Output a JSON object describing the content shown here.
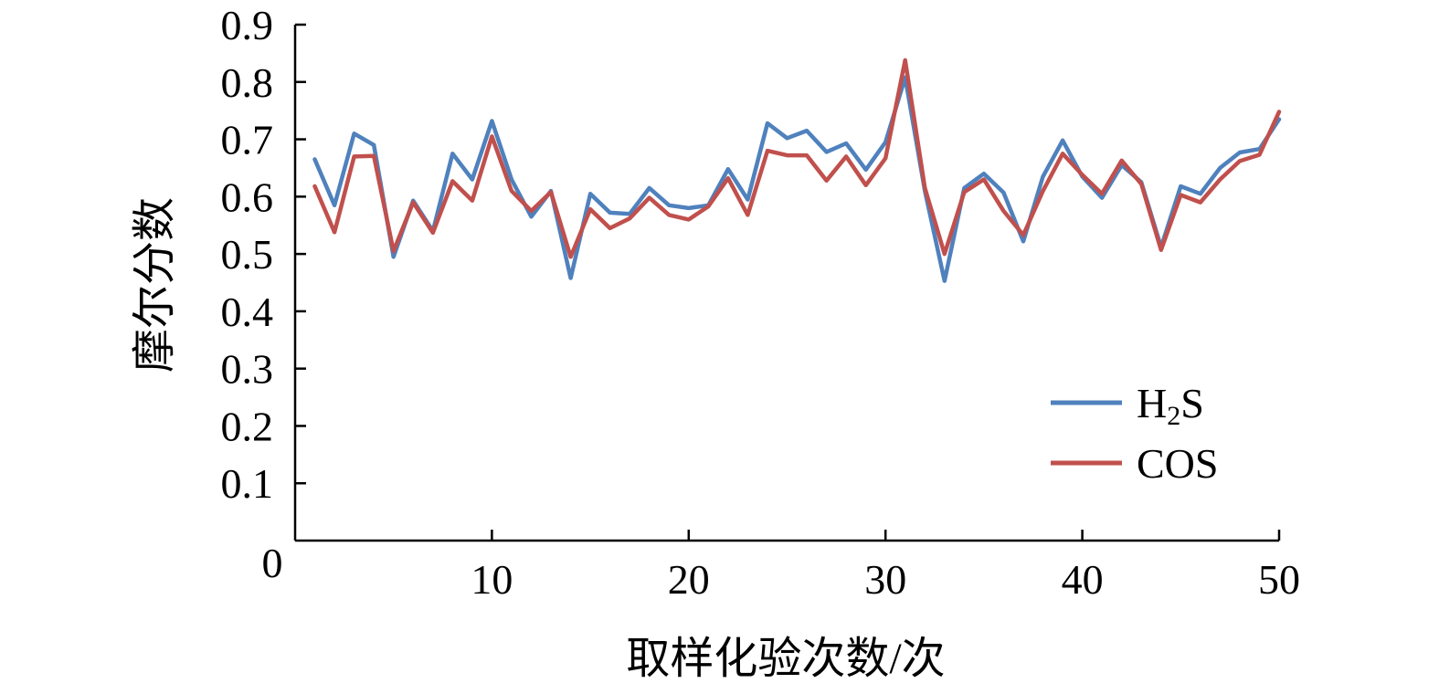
{
  "chart_data": {
    "type": "line",
    "title": "",
    "xlabel": "取样化验次数/次",
    "ylabel": "摩尔分数",
    "xlim": [
      0,
      50
    ],
    "ylim": [
      0,
      0.9
    ],
    "x_ticks": [
      "10",
      "20",
      "30",
      "40",
      "50"
    ],
    "y_ticks": [
      "0.1",
      "0.2",
      "0.3",
      "0.4",
      "0.5",
      "0.6",
      "0.7",
      "0.8",
      "0.9"
    ],
    "origin_label": "0",
    "grid": false,
    "legend_position": "bottom-right",
    "x": [
      1,
      2,
      3,
      4,
      5,
      6,
      7,
      8,
      9,
      10,
      11,
      12,
      13,
      14,
      15,
      16,
      17,
      18,
      19,
      20,
      21,
      22,
      23,
      24,
      25,
      26,
      27,
      28,
      29,
      30,
      31,
      32,
      33,
      34,
      35,
      36,
      37,
      38,
      39,
      40,
      41,
      42,
      43,
      44,
      45,
      46,
      47,
      48,
      49,
      50
    ],
    "series": [
      {
        "name": "H₂S",
        "name_parts": {
          "base": "H",
          "sub": "2",
          "tail": "S"
        },
        "color": "#4f81bd",
        "values": [
          0.665,
          0.585,
          0.71,
          0.69,
          0.495,
          0.593,
          0.54,
          0.675,
          0.63,
          0.732,
          0.63,
          0.565,
          0.61,
          0.458,
          0.605,
          0.572,
          0.57,
          0.615,
          0.585,
          0.58,
          0.585,
          0.648,
          0.595,
          0.728,
          0.702,
          0.715,
          0.678,
          0.693,
          0.647,
          0.695,
          0.808,
          0.61,
          0.453,
          0.615,
          0.64,
          0.607,
          0.522,
          0.635,
          0.698,
          0.635,
          0.598,
          0.655,
          0.625,
          0.512,
          0.618,
          0.605,
          0.65,
          0.677,
          0.683,
          0.735
        ]
      },
      {
        "name": "COS",
        "color": "#c0504d",
        "values": [
          0.618,
          0.538,
          0.67,
          0.671,
          0.505,
          0.59,
          0.537,
          0.627,
          0.593,
          0.705,
          0.61,
          0.575,
          0.608,
          0.495,
          0.578,
          0.545,
          0.562,
          0.598,
          0.568,
          0.56,
          0.583,
          0.632,
          0.568,
          0.68,
          0.672,
          0.672,
          0.628,
          0.67,
          0.62,
          0.667,
          0.838,
          0.615,
          0.5,
          0.608,
          0.63,
          0.575,
          0.533,
          0.61,
          0.675,
          0.638,
          0.605,
          0.663,
          0.622,
          0.507,
          0.603,
          0.59,
          0.63,
          0.662,
          0.673,
          0.748
        ]
      }
    ]
  }
}
